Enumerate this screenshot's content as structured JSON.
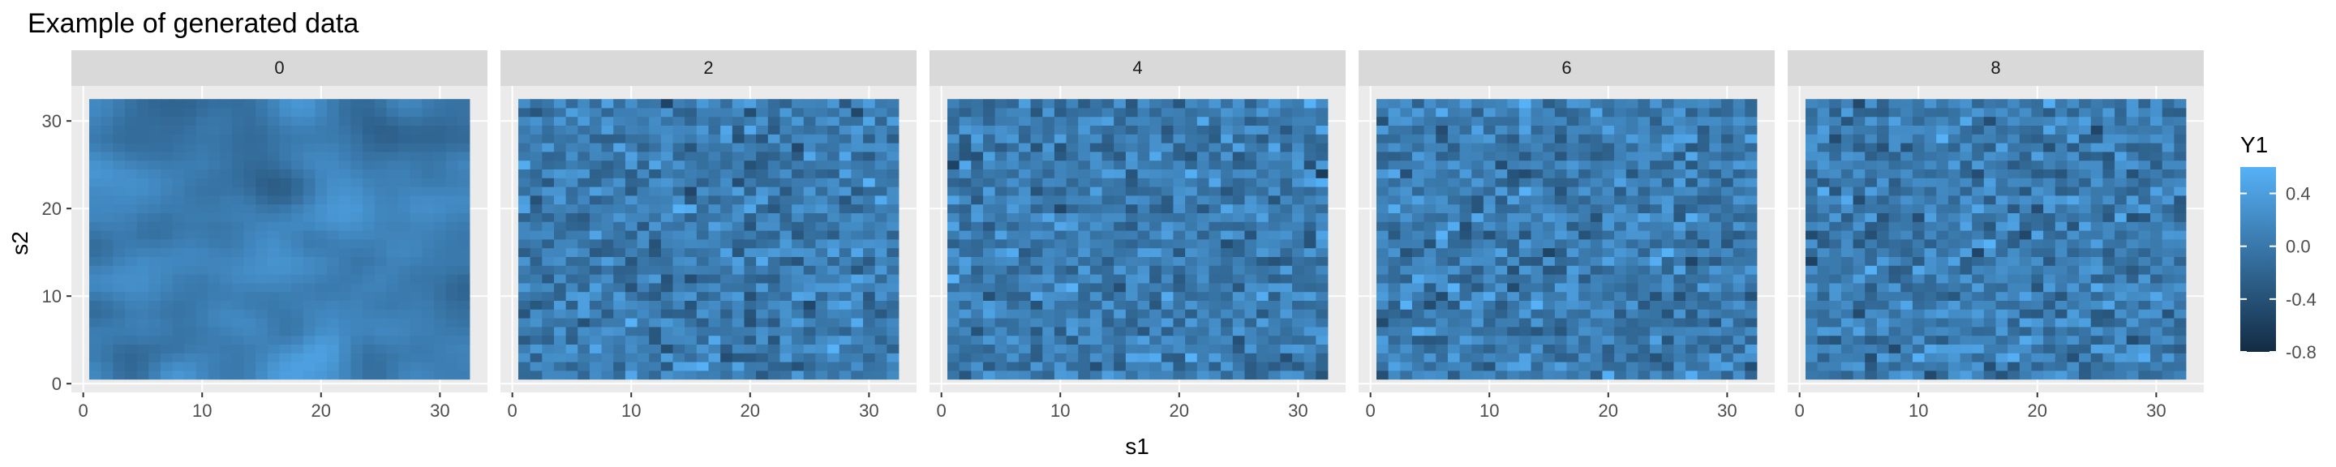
{
  "chart_data": {
    "type": "heatmap",
    "title": "Example of generated data",
    "xlabel": "s1",
    "ylabel": "s2",
    "facets": [
      "0",
      "2",
      "4",
      "6",
      "8"
    ],
    "x_range": [
      1,
      32
    ],
    "y_range": [
      1,
      32
    ],
    "x_ticks": [
      0,
      10,
      20,
      30
    ],
    "y_ticks": [
      0,
      10,
      20,
      30
    ],
    "grid": true,
    "legend": {
      "title": "Y1",
      "position": "right",
      "range": [
        -0.8,
        0.6
      ],
      "ticks": [
        0.4,
        0.0,
        -0.4,
        -0.8
      ],
      "tick_labels": [
        "0.4",
        "0.0",
        "-0.4",
        "-0.8"
      ],
      "low_color": "#132B43",
      "high_color": "#56B1F7"
    }
  },
  "colors": {
    "panel_background": "#EBEBEB",
    "strip_background": "#D9D9D9",
    "grid": "#FFFFFF"
  }
}
